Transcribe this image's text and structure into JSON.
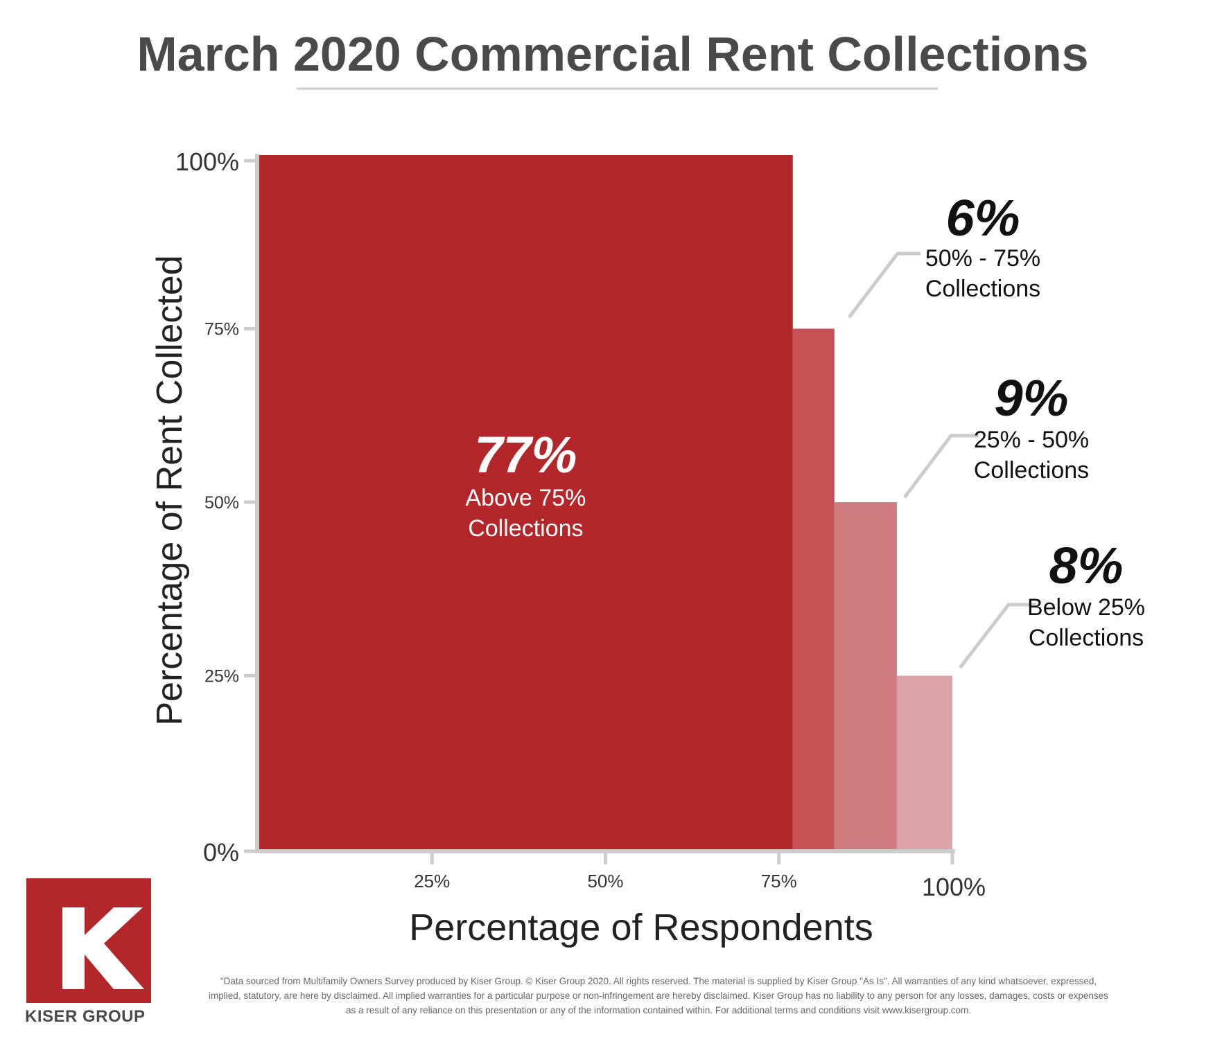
{
  "title": "March 2020 Commercial Rent Collections",
  "colors": {
    "title": "#4a4a4a",
    "axis": "#cccccc",
    "seg1": "#b3262a",
    "seg2": "#c55055",
    "seg3": "#d07b7e",
    "seg4": "#dda4a7",
    "leader": "#cccccc"
  },
  "chart_data": {
    "type": "bar",
    "title": "March 2020 Commercial Rent Collections",
    "xlabel": "Percentage of Respondents",
    "ylabel": "Percentage of Rent Collected",
    "xlim": [
      0,
      100
    ],
    "ylim": [
      0,
      100
    ],
    "x_ticks": [
      "25%",
      "50%",
      "75%",
      "100%"
    ],
    "y_ticks": [
      "0%",
      "25%",
      "50%",
      "75%",
      "100%"
    ],
    "grid": false,
    "legend": "none",
    "segments": [
      {
        "share": 77,
        "height": 100,
        "value_label": "77%",
        "label_line1": "Above 75%",
        "label_line2": "Collections",
        "label_position": "inside",
        "color": "#b3262a"
      },
      {
        "share": 6,
        "height": 75,
        "value_label": "6%",
        "label_line1": "50% - 75%",
        "label_line2": "Collections",
        "label_position": "callout",
        "color": "#c55055"
      },
      {
        "share": 9,
        "height": 50,
        "value_label": "9%",
        "label_line1": "25% - 50%",
        "label_line2": "Collections",
        "label_position": "callout",
        "color": "#d07b7e"
      },
      {
        "share": 8,
        "height": 25,
        "value_label": "8%",
        "label_line1": "Below 25%",
        "label_line2": "Collections",
        "label_position": "callout",
        "color": "#dda4a7"
      }
    ]
  },
  "disclaimer": "\"Data sourced from Multifamily Owners Survey produced by Kiser Group. © Kiser Group 2020. All rights reserved. The material is supplied by Kiser Group \"As Is\". All warranties of any kind whatsoever, expressed, implied, statutory, are here by disclaimed. All implied warranties for a particular purpose or non-infringement are hereby disclaimed. Kiser Group has no liability to any person for any losses, damages, costs or expenses as a result of any reliance on this presentation or any of the information contained within. For additional terms and conditions visit www.kisergroup.com.",
  "logo": {
    "letter": "K",
    "wordmark": "KISER GROUP"
  }
}
